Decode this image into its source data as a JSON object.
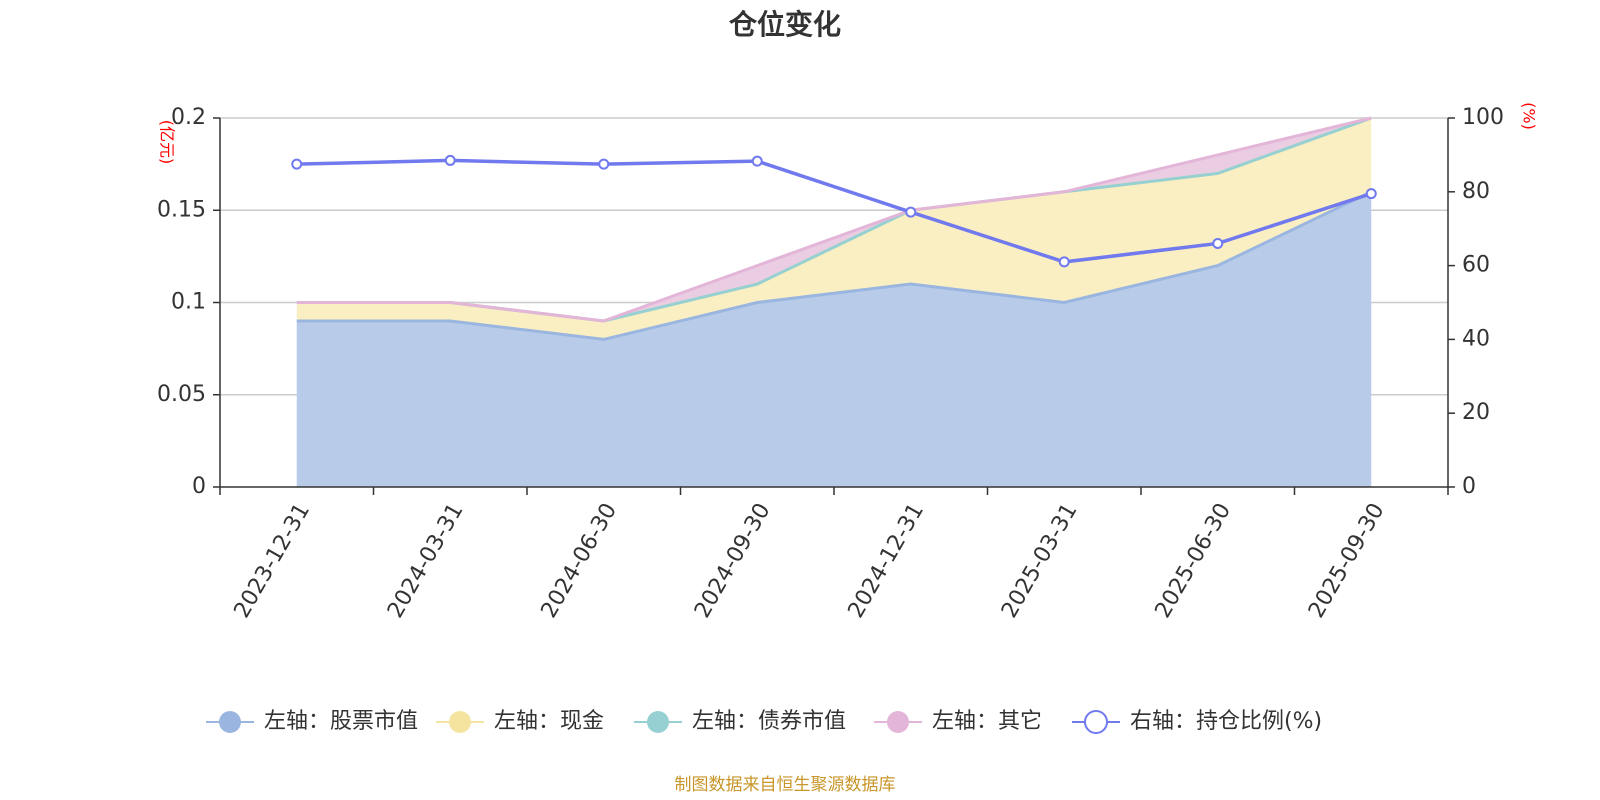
{
  "title": "仓位变化",
  "source": "制图数据来自恒生聚源数据库",
  "chart_data": {
    "type": "area",
    "categories": [
      "2023-12-31",
      "2024-03-31",
      "2024-06-30",
      "2024-09-30",
      "2024-12-31",
      "2025-03-31",
      "2025-06-30",
      "2025-09-30"
    ],
    "left_axis": {
      "unit": "(亿元)",
      "ylim": [
        0,
        0.2
      ],
      "ticks": [
        "0",
        "0.05",
        "0.1",
        "0.15",
        "0.2"
      ]
    },
    "right_axis": {
      "unit": "(%)",
      "ylim": [
        0,
        100
      ],
      "ticks": [
        "0",
        "20",
        "40",
        "60",
        "80",
        "100"
      ]
    },
    "grid": true,
    "legend_position": "bottom-center",
    "series": [
      {
        "name": "左轴：股票市值",
        "axis": "left",
        "stacked": true,
        "color": "#9ab6e0",
        "fill": "#b8cce9",
        "values": [
          0.09,
          0.09,
          0.08,
          0.1,
          0.11,
          0.1,
          0.12,
          0.16
        ]
      },
      {
        "name": "左轴：现金",
        "axis": "left",
        "stacked": true,
        "color": "#f5e4a0",
        "fill": "#faefc2",
        "values": [
          0.01,
          0.01,
          0.01,
          0.01,
          0.04,
          0.06,
          0.05,
          0.04
        ]
      },
      {
        "name": "左轴：债券市值",
        "axis": "left",
        "stacked": true,
        "color": "#96d0d3",
        "fill": "#bfe3e5",
        "values": [
          0,
          0,
          0,
          0,
          0,
          0,
          0,
          0
        ]
      },
      {
        "name": "左轴：其它",
        "axis": "left",
        "stacked": true,
        "color": "#e3b5d8",
        "fill": "#ebcde3",
        "values": [
          0,
          0,
          0,
          0.01,
          0,
          0,
          0.01,
          0
        ]
      },
      {
        "name": "右轴：持仓比例(%)",
        "axis": "right",
        "type": "line",
        "color": "#7079ee",
        "values": [
          87.5,
          88.5,
          87.5,
          88.3,
          74.5,
          61,
          66,
          79.5
        ]
      }
    ]
  }
}
